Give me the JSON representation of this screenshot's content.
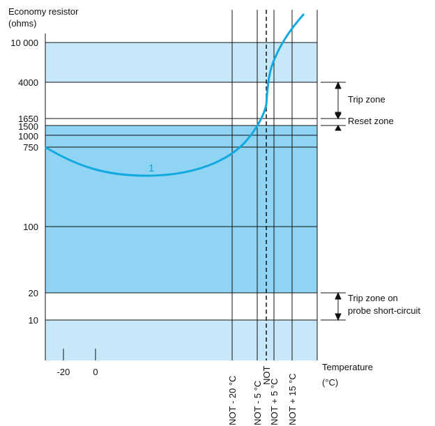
{
  "y_axis": {
    "title_line1": "Economy resistor",
    "title_line2": "(ohms)",
    "ticks": [
      "10 000",
      "4000",
      "1650",
      "1500",
      "1000",
      "750",
      "100",
      "20",
      "10"
    ]
  },
  "x_axis": {
    "title_line1": "Temperature",
    "title_line2": "(°C)",
    "ticks": [
      "-20",
      "0"
    ],
    "vertical_labels": [
      "NOT - 20 °C",
      "NOT - 5 °C",
      "NOT",
      "NOT + 5 °C",
      "NOT + 15 °C"
    ]
  },
  "annotations": {
    "trip_zone": "Trip zone",
    "reset_zone": "Reset zone",
    "short_circuit_line1": "Trip zone on",
    "short_circuit_line2": "probe short-circuit",
    "curve_label": "1"
  },
  "colors": {
    "light_zone": "#c6e8f8",
    "mid_zone": "#8fd4f3",
    "curve": "#12a8e0"
  }
}
